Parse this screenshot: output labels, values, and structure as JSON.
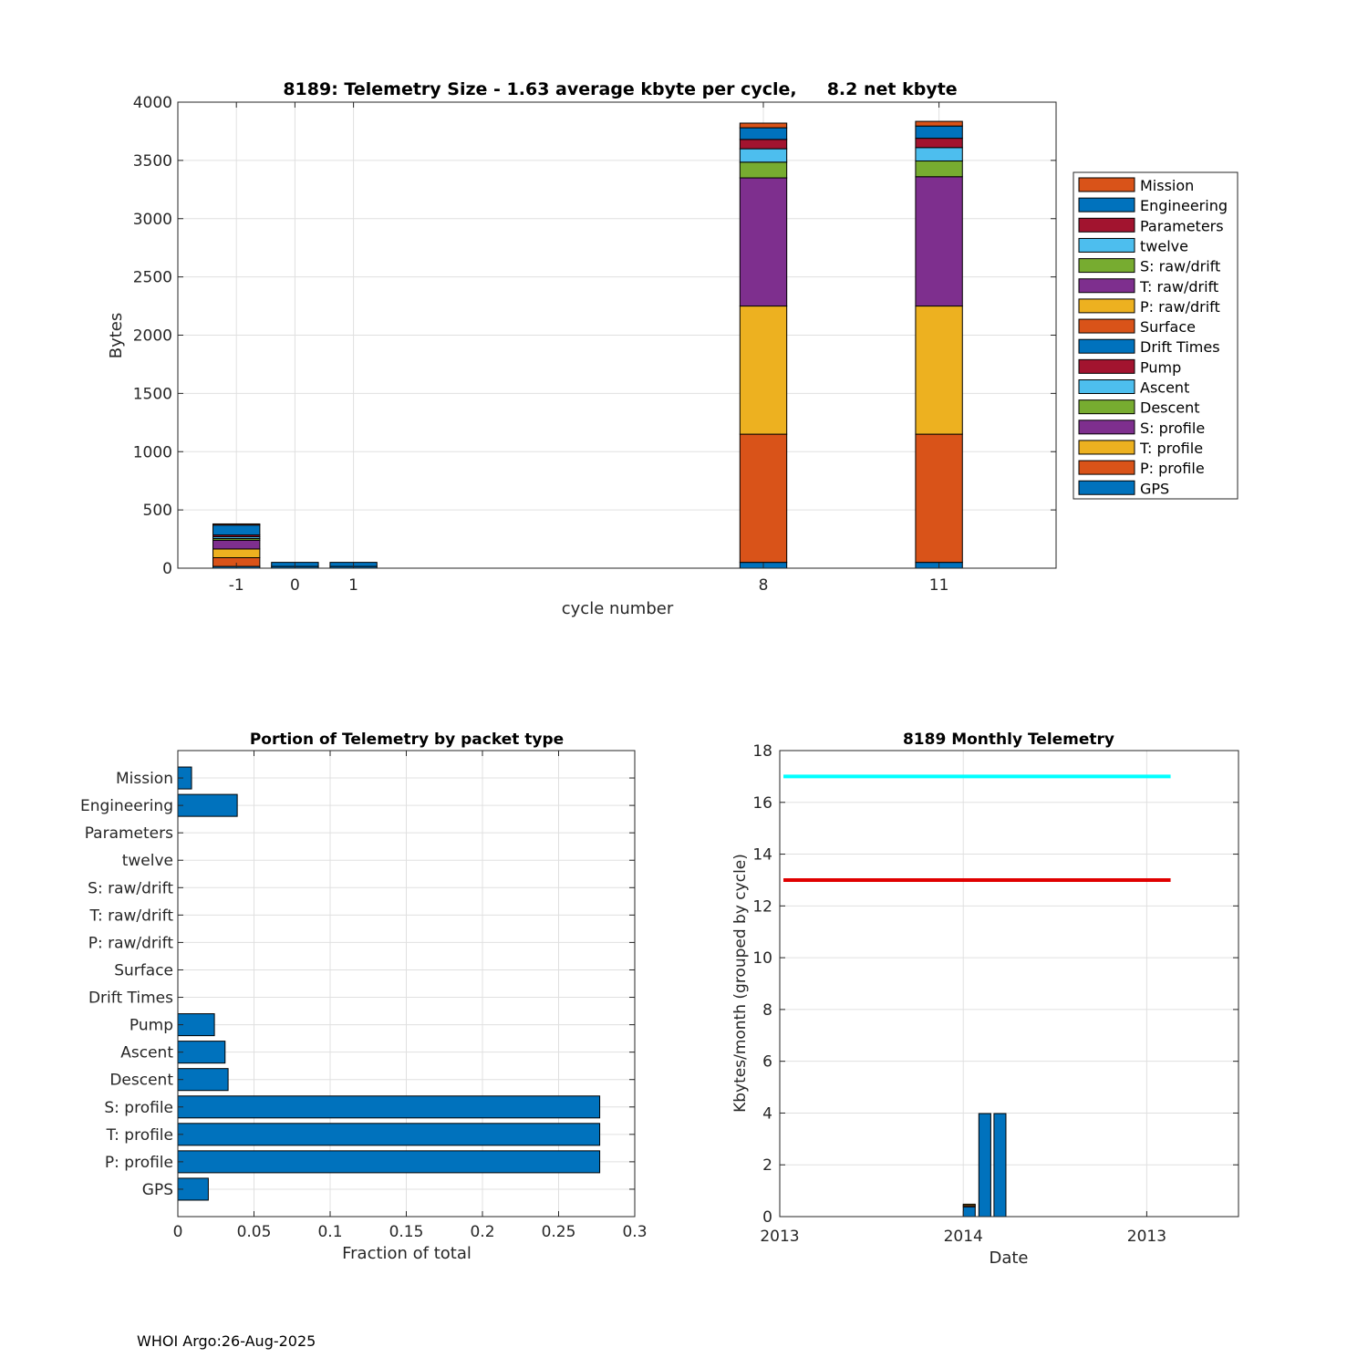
{
  "footer": "WHOI Argo:26-Aug-2025",
  "colors": {
    "Mission": "#D95319",
    "Engineering": "#0072BD",
    "Parameters": "#A2142F",
    "twelve": "#4DBEEE",
    "S: raw/drift": "#77AC30",
    "T: raw/drift": "#7E2F8E",
    "P: raw/drift": "#EDB120",
    "Surface": "#D95319",
    "Drift Times": "#0072BD",
    "Pump": "#A2142F",
    "Ascent": "#4DBEEE",
    "Descent": "#77AC30",
    "S: profile": "#7E2F8E",
    "T: profile": "#EDB120",
    "P: profile": "#D95319",
    "GPS": "#0072BD",
    "bar": "#0072BD",
    "cyan_line": "#00FFFF",
    "red_line": "#E00000"
  },
  "chart_data": [
    {
      "type": "bar",
      "stacked": true,
      "title": "8189: Telemetry Size - 1.63 average kbyte per cycle,     8.2 net kbyte",
      "xlabel": "cycle number",
      "ylabel": "Bytes",
      "ylim": [
        0,
        4000
      ],
      "yticks": [
        0,
        500,
        1000,
        1500,
        2000,
        2500,
        3000,
        3500,
        4000
      ],
      "xlim": [
        -2,
        13
      ],
      "xticks": [
        "-1",
        "0",
        "1",
        "8",
        "11"
      ],
      "categories": [
        -1,
        0,
        1,
        8,
        11
      ],
      "legend_position": "right",
      "legend": [
        "Mission",
        "Engineering",
        "Parameters",
        "twelve",
        "S: raw/drift",
        "T: raw/drift",
        "P: raw/drift",
        "Surface",
        "Drift Times",
        "Pump",
        "Ascent",
        "Descent",
        "S: profile",
        "T: profile",
        "P: profile",
        "GPS"
      ],
      "series": [
        {
          "name": "GPS",
          "values": [
            15,
            15,
            15,
            50,
            50
          ]
        },
        {
          "name": "P: profile",
          "values": [
            75,
            0,
            0,
            1100,
            1100
          ]
        },
        {
          "name": "T: profile",
          "values": [
            75,
            0,
            0,
            1100,
            1100
          ]
        },
        {
          "name": "S: profile",
          "values": [
            75,
            0,
            0,
            1100,
            1110
          ]
        },
        {
          "name": "Descent",
          "values": [
            15,
            0,
            0,
            135,
            135
          ]
        },
        {
          "name": "Ascent",
          "values": [
            15,
            0,
            0,
            115,
            115
          ]
        },
        {
          "name": "Pump",
          "values": [
            15,
            0,
            0,
            80,
            80
          ]
        },
        {
          "name": "Drift Times",
          "values": [
            0,
            0,
            0,
            0,
            0
          ]
        },
        {
          "name": "Surface",
          "values": [
            0,
            0,
            0,
            0,
            0
          ]
        },
        {
          "name": "P: raw/drift",
          "values": [
            0,
            0,
            0,
            0,
            0
          ]
        },
        {
          "name": "T: raw/drift",
          "values": [
            0,
            0,
            0,
            0,
            0
          ]
        },
        {
          "name": "S: raw/drift",
          "values": [
            0,
            0,
            0,
            0,
            0
          ]
        },
        {
          "name": "twelve",
          "values": [
            0,
            0,
            0,
            0,
            0
          ]
        },
        {
          "name": "Parameters",
          "values": [
            0,
            0,
            0,
            0,
            0
          ]
        },
        {
          "name": "Engineering",
          "values": [
            85,
            35,
            35,
            100,
            105
          ]
        },
        {
          "name": "Mission",
          "values": [
            10,
            0,
            0,
            40,
            40
          ]
        }
      ]
    },
    {
      "type": "bar",
      "orientation": "horizontal",
      "title": "Portion of Telemetry by packet type",
      "xlabel": "Fraction of total",
      "ylabel": "",
      "xlim": [
        0,
        0.3
      ],
      "xticks": [
        "0",
        "0.05",
        "0.1",
        "0.15",
        "0.2",
        "0.25",
        "0.3"
      ],
      "categories": [
        "Mission",
        "Engineering",
        "Parameters",
        "twelve",
        "S: raw/drift",
        "T: raw/drift",
        "P: raw/drift",
        "Surface",
        "Drift Times",
        "Pump",
        "Ascent",
        "Descent",
        "S: profile",
        "T: profile",
        "P: profile",
        "GPS"
      ],
      "values": [
        0.009,
        0.039,
        0,
        0,
        0,
        0,
        0,
        0,
        0,
        0.024,
        0.031,
        0.033,
        0.277,
        0.277,
        0.277,
        0.02
      ]
    },
    {
      "type": "bar",
      "title": "8189 Monthly Telemetry",
      "xlabel": "Date",
      "ylabel": "Kbytes/month (grouped by cycle)",
      "ylim": [
        0,
        18
      ],
      "yticks": [
        0,
        2,
        4,
        6,
        8,
        10,
        12,
        14,
        16,
        18
      ],
      "xlim": [
        0,
        1
      ],
      "xticks": [
        {
          "label": "2013",
          "pos": 0
        },
        {
          "label": "2014",
          "pos": 0.4
        },
        {
          "label": "2013",
          "pos": 0.8
        }
      ],
      "bars": [
        {
          "x": 0.413,
          "segments": [
            {
              "value": 0.38,
              "color": "#0072BD"
            },
            {
              "value": 0.05,
              "color": "#D95319"
            },
            {
              "value": 0.05,
              "color": "#EDB120"
            }
          ]
        },
        {
          "x": 0.447,
          "segments": [
            {
              "value": 3.98,
              "color": "#0072BD"
            }
          ]
        },
        {
          "x": 0.48,
          "segments": [
            {
              "value": 3.98,
              "color": "#0072BD"
            }
          ]
        }
      ],
      "bar_width": 0.026,
      "lines": [
        {
          "value": 17,
          "x_range": [
            0.008,
            0.852
          ],
          "color": "#00FFFF"
        },
        {
          "value": 13,
          "x_range": [
            0.008,
            0.852
          ],
          "color": "#E00000"
        }
      ]
    }
  ]
}
